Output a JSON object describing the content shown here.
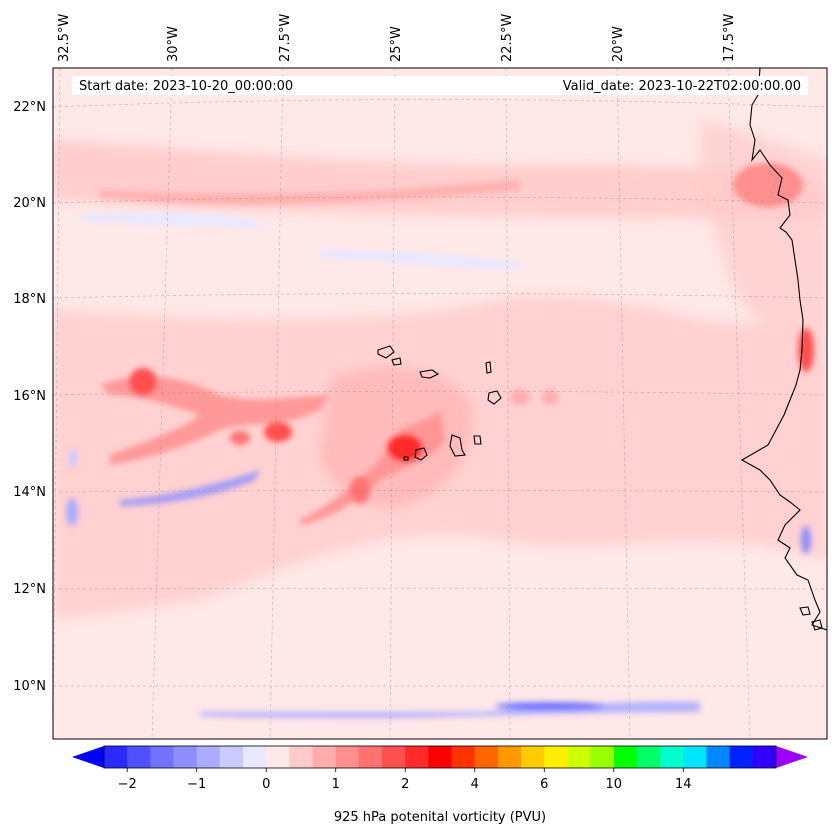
{
  "header": {
    "start_date": "Start date: 2023-10-20_00:00:00",
    "valid_date": "Valid_date: 2023-10-22T02:00:00.00"
  },
  "map": {
    "region": "Eastern tropical North Atlantic / Cape Verde",
    "lon_labels": [
      "32.5°W",
      "30°W",
      "27.5°W",
      "25°W",
      "22.5°W",
      "20°W",
      "17.5°W"
    ],
    "lat_labels": [
      "22°N",
      "20°N",
      "18°N",
      "16°N",
      "14°N",
      "12°N",
      "10°N"
    ],
    "gridlines": true,
    "coastline_color": "#000000"
  },
  "colorbar": {
    "label": "925 hPa potenital vorticity (PVU)",
    "tick_labels": [
      "−2",
      "−1",
      "0",
      "1",
      "2",
      "4",
      "6",
      "10",
      "14"
    ],
    "extend": "both",
    "colors": [
      "#0000ff",
      "#2a2aff",
      "#5050ff",
      "#7272ff",
      "#8e8eff",
      "#acacff",
      "#cacaff",
      "#e8e8ff",
      "#ffe8e8",
      "#ffcaca",
      "#ffacac",
      "#ff8e8e",
      "#ff7272",
      "#ff5050",
      "#ff2a2a",
      "#ff0000",
      "#ff3300",
      "#ff6600",
      "#ff9900",
      "#ffcc00",
      "#ffee00",
      "#ccff00",
      "#99ff00",
      "#00ff00",
      "#00ff66",
      "#00ffcc",
      "#00e5ff",
      "#0088ff",
      "#0022ff",
      "#3300ff",
      "#9900ff"
    ]
  },
  "chart_data": {
    "type": "heatmap",
    "variable": "925 hPa potenital vorticity (PVU)",
    "units": "PVU",
    "xlim": [
      -32.5,
      -15.5
    ],
    "ylim": [
      9.0,
      22.5
    ],
    "features": [
      {
        "lon": -29.8,
        "lat": 16.3,
        "value": 1.5
      },
      {
        "lon": -27.5,
        "lat": 15.2,
        "value": 1.6
      },
      {
        "lon": -24.9,
        "lat": 14.9,
        "value": 1.8
      },
      {
        "lon": -16.1,
        "lat": 20.4,
        "value": 1.0
      },
      {
        "lon": -15.9,
        "lat": 16.8,
        "value": 1.0
      },
      {
        "lon": -29.0,
        "lat": 14.0,
        "value": -1.0
      },
      {
        "lon": -22.5,
        "lat": 9.6,
        "value": -0.8
      }
    ]
  }
}
